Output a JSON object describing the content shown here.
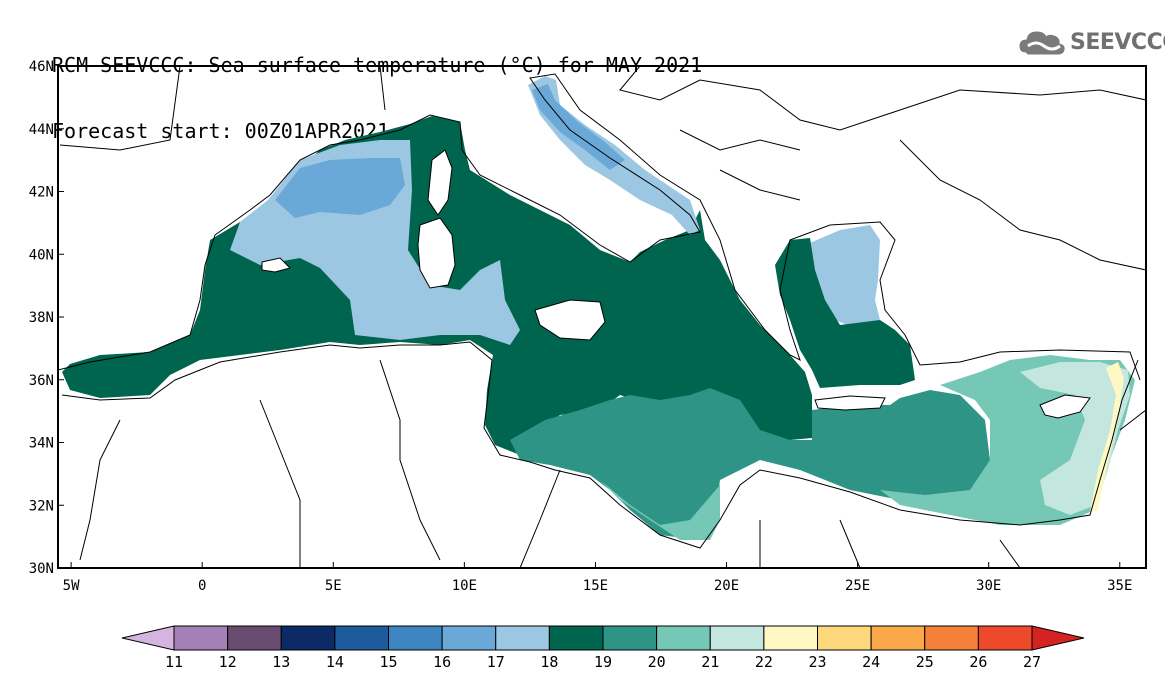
{
  "title": {
    "line1": "RCM-SEEVCCC: Sea surface temperature (°C) for MAY 2021",
    "line2": "Forecast start: 00Z01APR2021"
  },
  "logo": {
    "text": "SEEVCCC",
    "icon": "cloud-icon"
  },
  "map": {
    "variable": "Sea surface temperature",
    "units": "°C",
    "lon_range": [
      -5.5,
      36
    ],
    "lat_range": [
      30,
      46
    ],
    "lat_labels": [
      "46N",
      "44N",
      "42N",
      "40N",
      "38N",
      "36N",
      "34N",
      "32N",
      "30N"
    ],
    "lat_values": [
      46,
      44,
      42,
      40,
      38,
      36,
      34,
      32,
      30
    ],
    "lon_labels": [
      "5W",
      "0",
      "5E",
      "10E",
      "15E",
      "20E",
      "25E",
      "30E",
      "35E"
    ],
    "lon_values": [
      -5,
      0,
      5,
      10,
      15,
      20,
      25,
      30,
      35
    ]
  },
  "colorbar": {
    "labels": [
      "11",
      "12",
      "13",
      "14",
      "15",
      "16",
      "17",
      "18",
      "19",
      "20",
      "21",
      "22",
      "23",
      "24",
      "25",
      "26",
      "27"
    ],
    "colors": [
      "#d6b4e0",
      "#a57fb8",
      "#6a4c70",
      "#0c2a66",
      "#1e5b9c",
      "#3d86c1",
      "#6aa8d7",
      "#9cc7e2",
      "#00654f",
      "#2e9586",
      "#75c7b6",
      "#c3e7df",
      "#fdf8c4",
      "#fdd87c",
      "#f9a94a",
      "#f5803a",
      "#ec4a2b",
      "#d42322"
    ],
    "palette_note": "end arrows extend below 11 and above 27"
  },
  "regions": {
    "cold_17": "#9cc7e2",
    "cool_16": "#6aa8d7",
    "dark_19": "#00654f",
    "mid_20": "#2e9586",
    "light_21": "#75c7b6",
    "pale_22": "#c3e7df",
    "warm_23": "#fdf8c4"
  }
}
